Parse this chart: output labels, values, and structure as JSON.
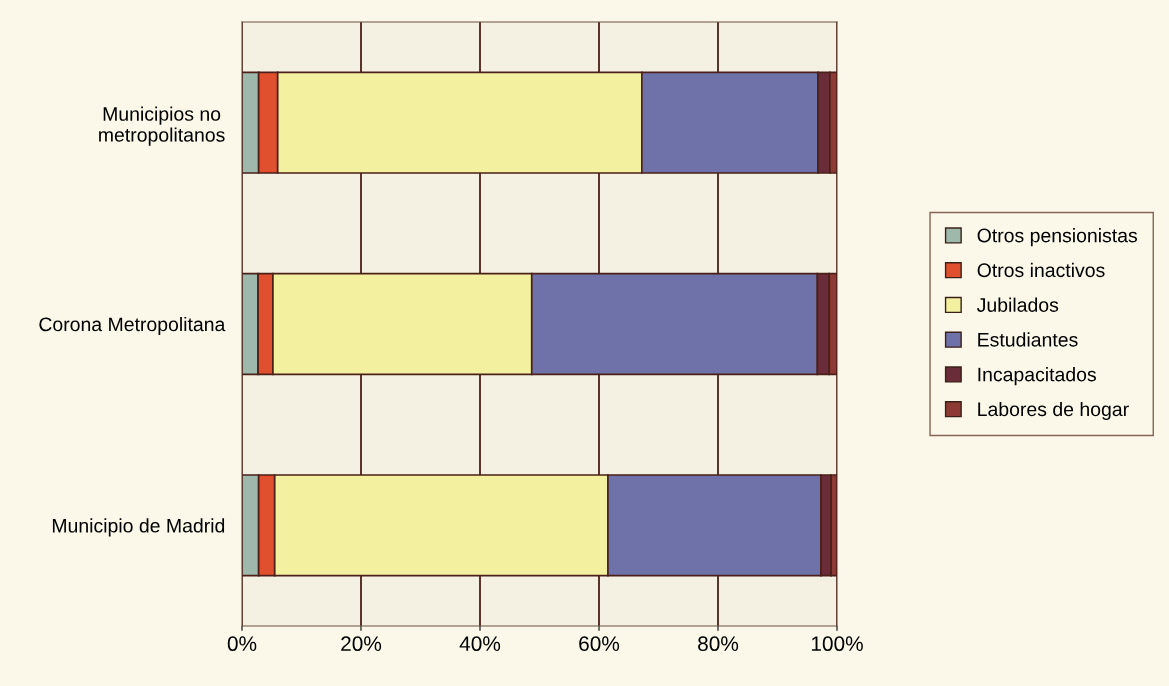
{
  "chart_data": {
    "type": "bar",
    "orientation": "horizontal",
    "stacked": true,
    "categories": [
      "Municipios no\nmetropolitanos",
      "Corona Metropolitana",
      "Municipio de Madrid"
    ],
    "series": [
      {
        "name": "Otros pensionistas",
        "color": "#9fb8ac",
        "values": [
          2.8,
          2.7,
          2.8
        ]
      },
      {
        "name": "Otros inactivos",
        "color": "#e0502e",
        "values": [
          3.2,
          2.5,
          2.7
        ]
      },
      {
        "name": "Jubilados",
        "color": "#f3f0a0",
        "values": [
          61.2,
          43.5,
          56.0
        ]
      },
      {
        "name": "Estudiantes",
        "color": "#6f72a8",
        "values": [
          29.6,
          48.0,
          35.8
        ]
      },
      {
        "name": "Incapacitados",
        "color": "#6a2c38",
        "values": [
          2.0,
          2.0,
          1.7
        ]
      },
      {
        "name": "Labores de hogar",
        "color": "#8e3a34",
        "values": [
          1.2,
          1.3,
          1.0
        ]
      }
    ],
    "xlim": [
      0,
      100
    ],
    "xticks": [
      {
        "value": 0,
        "label": "0%"
      },
      {
        "value": 20,
        "label": "20%"
      },
      {
        "value": 40,
        "label": "40%"
      },
      {
        "value": 60,
        "label": "60%"
      },
      {
        "value": 80,
        "label": "80%"
      },
      {
        "value": 100,
        "label": "100%"
      }
    ],
    "grid": "x",
    "legend": "right"
  }
}
